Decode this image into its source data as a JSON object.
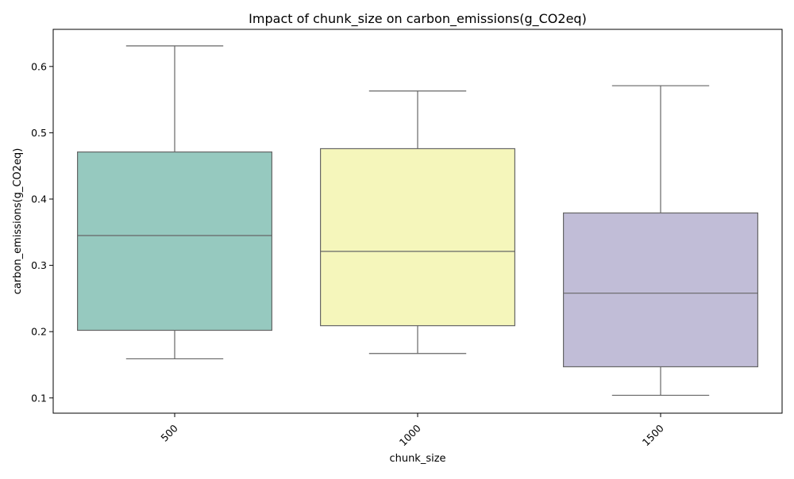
{
  "chart_data": {
    "type": "box",
    "title": "Impact of chunk_size on carbon_emissions(g_CO2eq)",
    "xlabel": "chunk_size",
    "ylabel": "carbon_emissions(g_CO2eq)",
    "categories": [
      "500",
      "1000",
      "1500"
    ],
    "boxes": [
      {
        "category": "500",
        "whisker_low": 0.159,
        "q1": 0.202,
        "median": 0.345,
        "q3": 0.471,
        "whisker_high": 0.631,
        "color": "#96c9bf"
      },
      {
        "category": "1000",
        "whisker_low": 0.167,
        "q1": 0.209,
        "median": 0.321,
        "q3": 0.476,
        "whisker_high": 0.563,
        "color": "#f5f6bb"
      },
      {
        "category": "1500",
        "whisker_low": 0.104,
        "q1": 0.147,
        "median": 0.258,
        "q3": 0.379,
        "whisker_high": 0.571,
        "color": "#c1bdd7"
      }
    ],
    "ylim": [
      0.077,
      0.656
    ],
    "yticks": [
      0.1,
      0.2,
      0.3,
      0.4,
      0.5,
      0.6
    ],
    "ytick_labels": [
      "0.1",
      "0.2",
      "0.3",
      "0.4",
      "0.5",
      "0.6"
    ],
    "xtick_rotation_deg": -45,
    "grid": false,
    "legend": "none",
    "line_color": "#666666"
  }
}
